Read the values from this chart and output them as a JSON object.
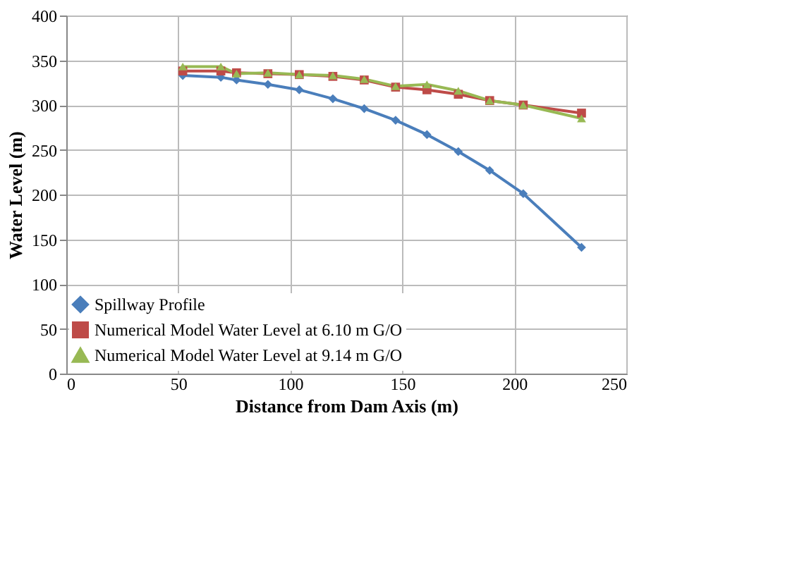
{
  "chart_data": {
    "type": "line",
    "xlabel": "Distance from Dam Axis (m)",
    "ylabel": "Water Level (m)",
    "x": [
      52,
      69,
      76,
      90,
      104,
      119,
      133,
      147,
      161,
      175,
      189,
      204,
      230
    ],
    "series": [
      {
        "name": "Spillway Profile",
        "color": "#4a7ebb",
        "marker": "diamond",
        "values": [
          333,
          331,
          328,
          323,
          317,
          307,
          296,
          283,
          267,
          248,
          227,
          201,
          141
        ]
      },
      {
        "name": "Numerical Model Water Level at 6.10 m G/O",
        "color": "#be4b48",
        "marker": "square",
        "values": [
          338,
          338,
          336,
          335,
          334,
          332,
          328,
          320,
          317,
          312,
          305,
          300,
          291
        ]
      },
      {
        "name": "Numerical Model Water Level at 9.14 m G/O",
        "color": "#98b954",
        "marker": "triangle",
        "values": [
          343,
          343,
          335,
          336,
          334,
          333,
          329,
          321,
          323,
          316,
          305,
          300,
          285
        ]
      }
    ],
    "xlim": [
      0,
      250
    ],
    "xticks": [
      0,
      50,
      100,
      150,
      200,
      250
    ],
    "ylim": [
      0,
      400
    ],
    "yticks": [
      0,
      50,
      100,
      150,
      200,
      250,
      300,
      350,
      400
    ],
    "grid": true,
    "legend": "bottom left",
    "line_style": "solid"
  }
}
